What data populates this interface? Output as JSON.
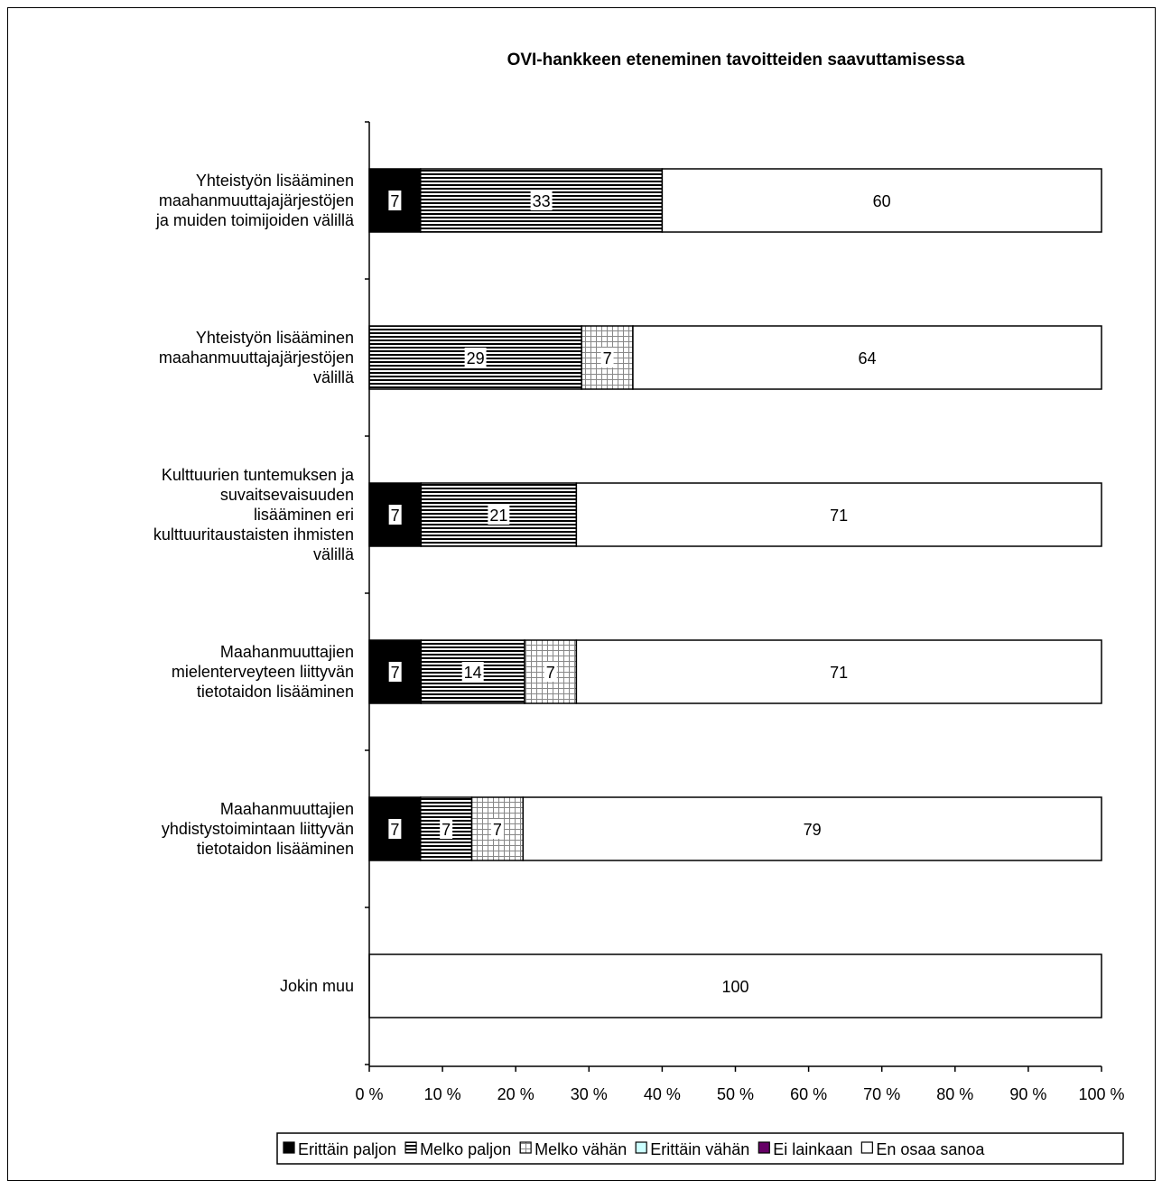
{
  "chart_data": {
    "type": "bar",
    "orientation": "horizontal",
    "stacked": "percent",
    "title": "OVI-hankkeen eteneminen tavoitteiden saavuttamisessa",
    "xlabel": "",
    "ylabel": "",
    "xlim": [
      0,
      100
    ],
    "x_ticks": [
      "0 %",
      "10 %",
      "20 %",
      "30 %",
      "40 %",
      "50 %",
      "60 %",
      "70 %",
      "80 %",
      "90 %",
      "100 %"
    ],
    "grid": false,
    "legend_position": "bottom",
    "categories": [
      "Yhteistyön lisääminen maahanmuuttajajärjestöjen ja muiden toimijoiden välillä",
      "Yhteistyön lisääminen maahanmuuttajajärjestöjen välillä",
      "Kulttuurien tuntemuksen ja suvaitsevaisuuden lisääminen eri kulttuuritaustaisten ihmisten välillä",
      "Maahanmuuttajien mielenterveyteen liittyvän tietotaidon lisääminen",
      "Maahanmuuttajien yhdistystoimintaan liittyvän tietotaidon lisääminen",
      "Jokin muu"
    ],
    "category_lines": [
      [
        "Yhteistyön lisääminen",
        "maahanmuuttajajärjestöjen",
        "ja muiden toimijoiden välillä"
      ],
      [
        "Yhteistyön lisääminen",
        "maahanmuuttajajärjestöjen",
        "välillä"
      ],
      [
        "Kulttuurien tuntemuksen ja",
        "suvaitsevaisuuden",
        "lisääminen eri",
        "kulttuuritaustaisten ihmisten",
        "välillä"
      ],
      [
        "Maahanmuuttajien",
        "mielenterveyteen liittyvän",
        "tietotaidon lisääminen"
      ],
      [
        "Maahanmuuttajien",
        "yhdistystoimintaan liittyvän",
        "tietotaidon lisääminen"
      ],
      [
        "Jokin muu"
      ]
    ],
    "series": [
      {
        "name": "Erittäin paljon",
        "values": [
          7,
          0,
          7,
          7,
          7,
          0
        ]
      },
      {
        "name": "Melko paljon",
        "values": [
          33,
          29,
          21,
          14,
          7,
          0
        ]
      },
      {
        "name": "Melko vähän",
        "values": [
          0,
          7,
          0,
          7,
          7,
          0
        ]
      },
      {
        "name": "Erittäin vähän",
        "values": [
          0,
          0,
          0,
          0,
          0,
          0
        ]
      },
      {
        "name": "Ei lainkaan",
        "values": [
          0,
          0,
          0,
          0,
          0,
          0
        ]
      },
      {
        "name": "En osaa sanoa",
        "values": [
          60,
          64,
          71,
          71,
          79,
          100
        ]
      }
    ],
    "colors": {
      "Erittäin paljon": "#000000",
      "Melko paljon": "#000000",
      "Melko vähän": "#d0d0d0",
      "Erittäin vähän": "#ccffff",
      "Ei lainkaan": "#660066",
      "En osaa sanoa": "#ffffff"
    }
  }
}
